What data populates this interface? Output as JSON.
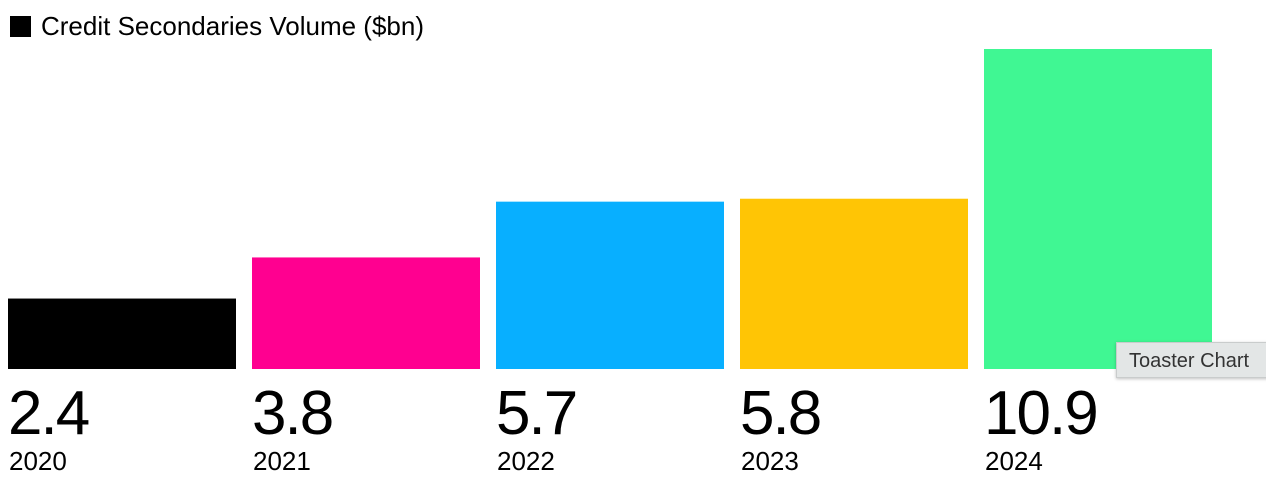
{
  "chart_data": {
    "type": "bar",
    "title": "",
    "xlabel": "",
    "ylabel": "",
    "legend": {
      "label": "Credit Secondaries Volume ($bn)",
      "placement": "top-left",
      "swatch_color": "#000000"
    },
    "categories": [
      "2020",
      "2021",
      "2022",
      "2023",
      "2024"
    ],
    "series": [
      {
        "name": "Credit Secondaries Volume ($bn)",
        "values": [
          2.4,
          3.8,
          5.7,
          5.8,
          10.9
        ]
      }
    ],
    "value_labels": [
      "2.4",
      "3.8",
      "5.7",
      "5.8",
      "10.9"
    ],
    "bar_colors": [
      "#000000",
      "#ff0090",
      "#08afff",
      "#ffc505",
      "#40f793"
    ],
    "ylim": [
      0,
      10.9
    ],
    "grid": false
  },
  "tooltip": {
    "text": "Toaster Chart"
  }
}
